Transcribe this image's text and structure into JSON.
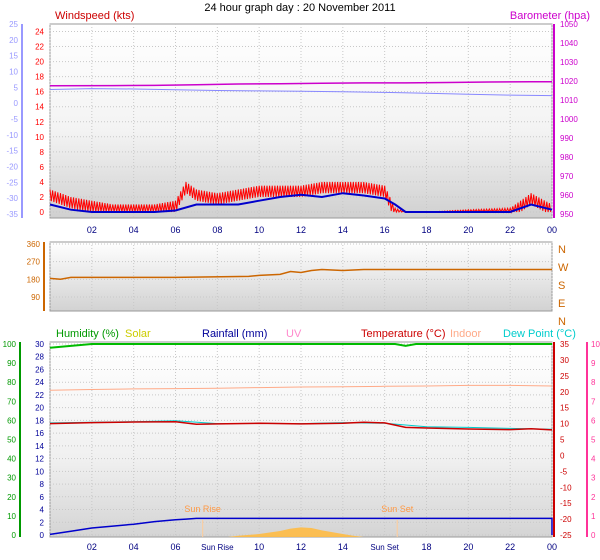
{
  "title": "24 hour graph day : 20 November 2011",
  "x_ticks": [
    "02",
    "04",
    "06",
    "08",
    "10",
    "12",
    "14",
    "16",
    "18",
    "20",
    "22",
    "00"
  ],
  "x_ticks_bottom": [
    "02",
    "04",
    "06",
    "Sun Rise",
    "10",
    "12",
    "14",
    "Sun Set",
    "18",
    "20",
    "22",
    "00"
  ],
  "chart_data": [
    {
      "type": "line",
      "name": "wind-baro-panel",
      "x_range_hours": [
        0,
        24
      ],
      "legend": {
        "wind": "Windspeed (kts)",
        "baro": "Barometer (hpa)"
      },
      "axes": {
        "left_outer": {
          "color": "#9999ff",
          "min": -35,
          "max": 25,
          "ticks": [
            "25",
            "20",
            "15",
            "10",
            "5",
            "0",
            "-5",
            "-10",
            "-15",
            "-20",
            "-25",
            "-30",
            "-35"
          ]
        },
        "left_inner": {
          "color": "#ff0000",
          "min": 0,
          "max": 25,
          "ticks": [
            "24",
            "22",
            "20",
            "18",
            "16",
            "14",
            "12",
            "10",
            "8",
            "6",
            "4",
            "2",
            "0"
          ]
        },
        "right": {
          "color": "#cc00cc",
          "min": 950,
          "max": 1050,
          "ticks": [
            "1050",
            "1040",
            "1030",
            "1020",
            "1010",
            "1000",
            "990",
            "980",
            "970",
            "960",
            "950"
          ]
        }
      },
      "series": [
        {
          "name": "Barometer (hpa)",
          "color": "#cc00cc",
          "x": [
            0,
            3,
            5,
            7,
            9,
            11,
            13,
            15,
            17,
            19,
            21,
            23,
            24
          ],
          "y": [
            1017.5,
            1017.6,
            1017.7,
            1018.0,
            1018.4,
            1018.6,
            1018.8,
            1019.0,
            1019.0,
            1019.2,
            1019.5,
            1019.6,
            1019.6
          ]
        },
        {
          "color": "#8888ff",
          "x": [
            0,
            2,
            4,
            6,
            8,
            10,
            12,
            14,
            16,
            18,
            20,
            22,
            24
          ],
          "y": [
            1015.5,
            1016.0,
            1015.8,
            1015.4,
            1015.0,
            1014.8,
            1014.6,
            1014.3,
            1014.0,
            1013.5,
            1013.0,
            1012.6,
            1012.3
          ]
        },
        {
          "color": "#ff0000",
          "kind": "gust",
          "x": [
            0,
            1,
            2,
            3,
            4,
            5,
            6,
            6.5,
            7,
            8,
            9,
            10,
            11,
            12,
            13,
            14,
            15,
            16,
            16.5,
            17,
            18,
            20,
            22,
            23,
            24
          ],
          "y": [
            3,
            2,
            1.5,
            1,
            1,
            1,
            1.5,
            4,
            3,
            2.5,
            3,
            3.5,
            3.5,
            3.5,
            4,
            4,
            4,
            3.5,
            0.5,
            0,
            0,
            0.3,
            0.5,
            2.5,
            1
          ]
        },
        {
          "name": "Windspeed (kts)",
          "color": "#0000cc",
          "x": [
            0,
            1,
            2,
            3,
            4,
            5,
            6,
            7,
            8,
            9,
            10,
            11,
            12,
            13,
            14,
            15,
            16,
            16.5,
            17,
            18,
            20,
            22,
            23,
            24
          ],
          "y": [
            1,
            0.3,
            0,
            0,
            0,
            0,
            0.2,
            1,
            1,
            1,
            1.5,
            2,
            2.3,
            2,
            2.5,
            2.2,
            1.8,
            1,
            0,
            0,
            0,
            0,
            1,
            0.3
          ]
        }
      ]
    },
    {
      "type": "line",
      "name": "wind-direction-panel",
      "x_range_hours": [
        0,
        24
      ],
      "axes": {
        "left": {
          "min": 90,
          "max": 360,
          "ticks": [
            "360",
            "270",
            "180",
            "90"
          ]
        },
        "right_labels": [
          "N",
          "W",
          "S",
          "E",
          "N"
        ]
      },
      "series": [
        {
          "color": "#cc6600",
          "x": [
            0,
            0.5,
            1,
            6,
            9.5,
            10,
            11,
            11.5,
            12,
            12.5,
            13,
            14,
            15,
            16,
            24
          ],
          "y": [
            185,
            180,
            190,
            190,
            195,
            200,
            205,
            220,
            215,
            225,
            230,
            225,
            230,
            230,
            230
          ]
        }
      ]
    },
    {
      "type": "line",
      "name": "temp-humidity-panel",
      "x_range_hours": [
        0,
        24
      ],
      "legend": {
        "humidity": "Humidity (%)",
        "solar": "Solar",
        "rain": "Rainfall (mm)",
        "uv": "UV",
        "temp": "Temperature (°C)",
        "indoor": "Indoor",
        "dew": "Dew Point (°C)"
      },
      "axes": {
        "humidity": {
          "color": "#009900",
          "min": 0,
          "max": 100,
          "ticks": [
            "100",
            "90",
            "80",
            "70",
            "60",
            "50",
            "40",
            "30",
            "20",
            "10",
            "0"
          ]
        },
        "rain": {
          "color": "#000099",
          "min": 0,
          "max": 30,
          "ticks": [
            "30",
            "28",
            "26",
            "24",
            "22",
            "20",
            "18",
            "16",
            "14",
            "12",
            "10",
            "8",
            "6",
            "4",
            "2",
            "0"
          ]
        },
        "temp": {
          "color": "#cc0000",
          "min": -25,
          "max": 35,
          "ticks": [
            "35",
            "30",
            "25",
            "20",
            "15",
            "10",
            "5",
            "0",
            "-5",
            "-10",
            "-15",
            "-20",
            "-25"
          ]
        },
        "uv": {
          "color": "#ff3399",
          "min": 0,
          "max": 10,
          "ticks": [
            "10",
            "9",
            "8",
            "7",
            "6",
            "5",
            "4",
            "3",
            "2",
            "1",
            "0"
          ]
        }
      },
      "annotations": {
        "sun_rise": "Sun Rise",
        "sun_set": "Sun Set",
        "sun_rise_hour": 7.3,
        "sun_set_hour": 16.6
      },
      "series": [
        {
          "name": "Humidity (%)",
          "color": "#00bb00",
          "x": [
            0,
            1,
            2,
            16.5,
            17,
            17.5,
            18,
            24
          ],
          "y": [
            98,
            99,
            100,
            100,
            99,
            100,
            100,
            100
          ]
        },
        {
          "name": "Indoor",
          "color": "#ffaa88",
          "x": [
            0,
            2,
            4,
            6,
            8,
            10,
            12,
            14,
            16,
            18,
            20,
            22,
            24
          ],
          "y": [
            20.5,
            20.7,
            20.9,
            21.0,
            21.1,
            21.3,
            21.5,
            21.6,
            21.7,
            21.8,
            22.0,
            22.0,
            21.8
          ]
        },
        {
          "name": "Dew Point (°C)",
          "color": "#00cccc",
          "x": [
            0,
            2,
            4,
            6,
            8,
            10,
            12,
            14,
            16,
            18,
            20,
            22,
            24
          ],
          "y": [
            10.2,
            10.4,
            10.6,
            10.9,
            10.0,
            10.1,
            10.0,
            10.3,
            10.1,
            9.0,
            8.8,
            8.5,
            8.2
          ]
        },
        {
          "name": "Temperature (°C)",
          "color": "#cc0000",
          "x": [
            0,
            2,
            4,
            6,
            7,
            8,
            10,
            12,
            14,
            15,
            16,
            17,
            18,
            20,
            22,
            23,
            24
          ],
          "y": [
            10.0,
            10.3,
            10.5,
            10.6,
            9.8,
            9.9,
            10.1,
            9.9,
            10.1,
            10.4,
            10.2,
            8.8,
            8.6,
            8.3,
            8.1,
            8.4,
            8.0
          ]
        },
        {
          "name": "Rainfall (mm)",
          "color": "#0000cc",
          "x": [
            0,
            1,
            2,
            3,
            4,
            5,
            6,
            6.5,
            7,
            24,
            24
          ],
          "y": [
            0.1,
            0.6,
            1.1,
            1.4,
            1.7,
            2.1,
            2.4,
            2.5,
            2.6,
            2.6,
            0
          ]
        },
        {
          "name": "Solar",
          "color": "#ffbb44",
          "kind": "area",
          "x": [
            8.5,
            9,
            10,
            11,
            11.5,
            12,
            12.5,
            13,
            14,
            14.5,
            15
          ],
          "y": [
            0,
            2,
            5,
            10,
            14,
            16,
            15,
            11,
            5,
            2,
            0
          ]
        }
      ]
    }
  ]
}
